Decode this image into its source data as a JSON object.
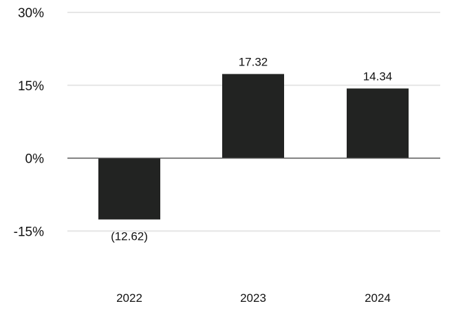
{
  "chart_data": {
    "type": "bar",
    "categories": [
      "2022",
      "2023",
      "2024"
    ],
    "values": [
      -12.62,
      17.32,
      14.34
    ],
    "data_labels": [
      "(12.62)",
      "17.32",
      "14.34"
    ],
    "y_ticks": [
      {
        "value": 30,
        "label": "30%"
      },
      {
        "value": 15,
        "label": "15%"
      },
      {
        "value": 0,
        "label": "0%"
      },
      {
        "value": -15,
        "label": "-15%"
      }
    ],
    "ylim": [
      -30,
      30
    ],
    "grid": true,
    "legend": "none",
    "colors": {
      "bar": "#222322",
      "grid": "#e6e6e6",
      "zero_line": "#555555",
      "text": "#111111"
    }
  }
}
